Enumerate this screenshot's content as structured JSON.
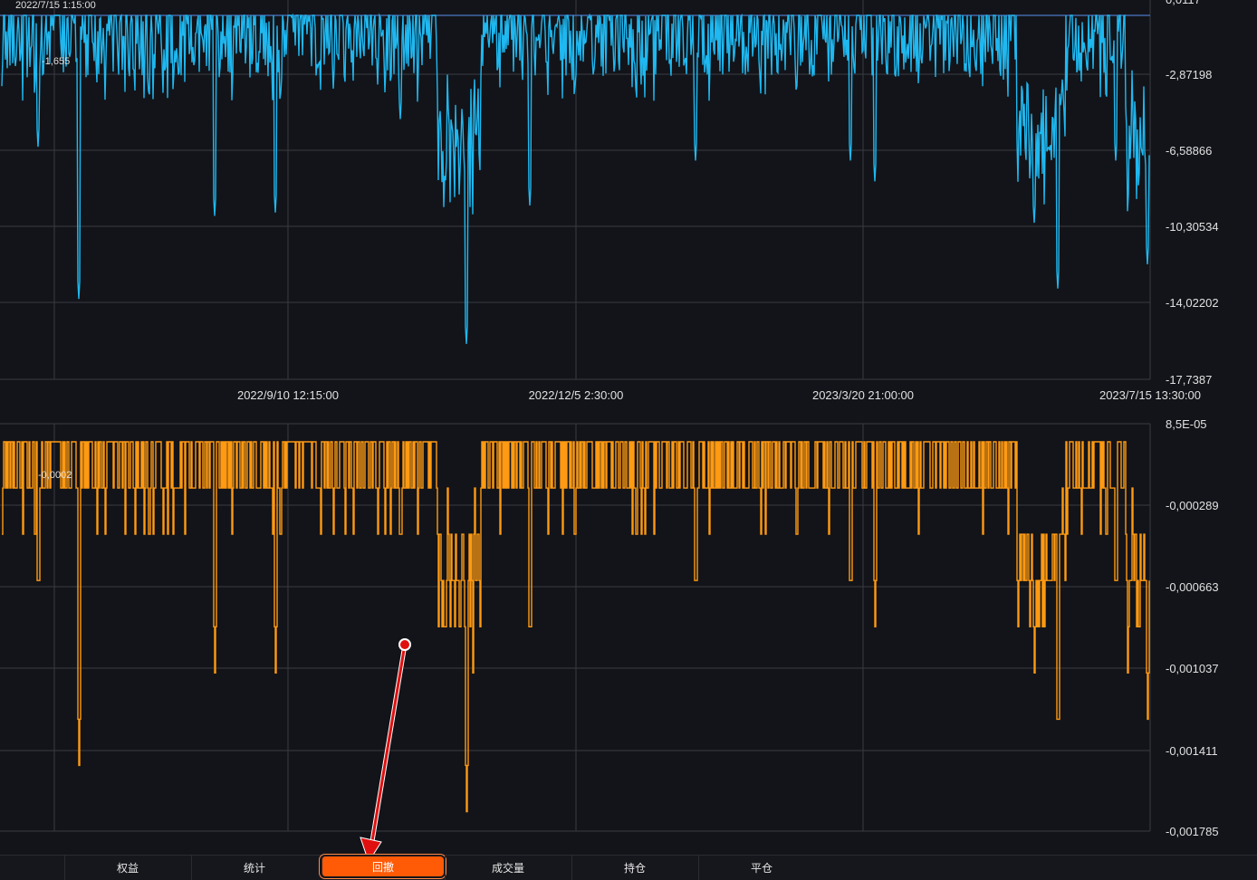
{
  "chart_data": [
    {
      "type": "area",
      "series": [
        {
          "color": "#1fb8f0"
        }
      ],
      "top_left_label": "2022/7/15 1:15:00",
      "cursor_value": "-1,655",
      "y_axis": {
        "top_label": "0,0117",
        "labels": [
          "-2,87198",
          "-6,58866",
          "-10,30534",
          "-14,02202",
          "-17,7387"
        ],
        "ylim": [
          -17.7387,
          0.8447
        ]
      },
      "x_axis": {
        "labels": [
          "2022/9/10 12:15:00",
          "2022/12/5 2:30:00",
          "2023/3/20 21:00:00",
          "2023/7/15 13:30:00"
        ]
      },
      "grid": true
    },
    {
      "type": "line",
      "series": [
        {
          "color": "#ff9a12"
        }
      ],
      "cursor_value": "-0,0002",
      "y_axis": {
        "labels": [
          "8,5E-05",
          "-0,000289",
          "-0,000663",
          "-0,001037",
          "-0,001411",
          "-0,001785"
        ],
        "ylim": [
          -0.001785,
          8.5e-05
        ]
      },
      "grid": true
    }
  ],
  "tabs": [
    "权益",
    "统计",
    "回撤",
    "成交量",
    "持仓",
    "平仓"
  ],
  "active_tab": "回撤",
  "annotation": {
    "arrow_color": "#e01010"
  }
}
